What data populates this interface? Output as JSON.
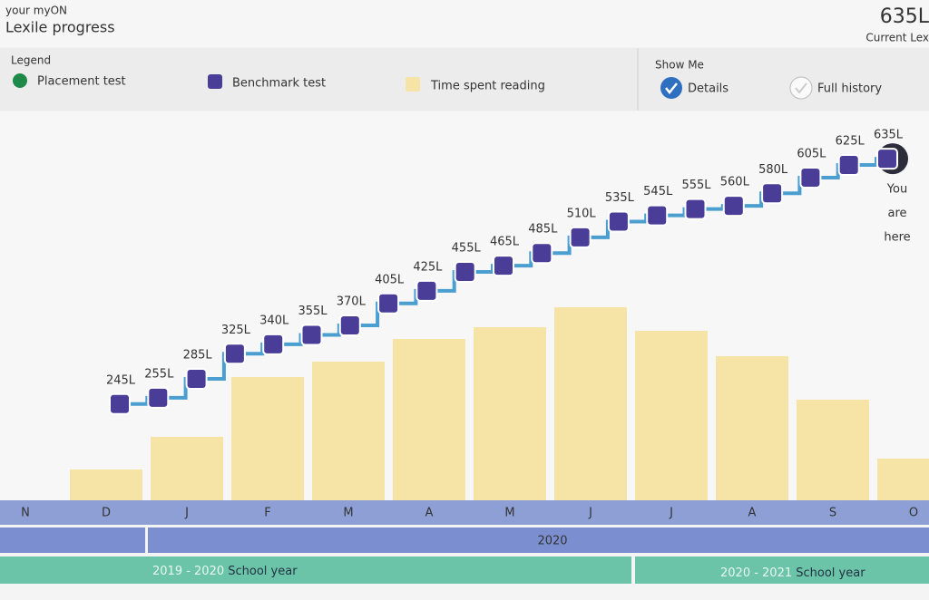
{
  "header": {
    "kicker": "your myON",
    "title": "Lexile progress",
    "current_value": "635L",
    "current_label": "Current Lex"
  },
  "legend": {
    "title": "Legend",
    "items": [
      "Placement test",
      "Benchmark test",
      "Time spent reading"
    ]
  },
  "show_me": {
    "title": "Show Me",
    "options": [
      "Details",
      "Full history"
    ]
  },
  "chart_data": {
    "type": "bar",
    "categories": [
      "N",
      "D",
      "J",
      "F",
      "M",
      "A",
      "M",
      "J",
      "J",
      "A",
      "S",
      "O"
    ],
    "values": [
      null,
      34,
      70,
      136,
      153,
      178,
      191,
      213,
      187,
      159,
      111,
      46
    ],
    "color": "#f6e3a6",
    "ylim": [
      0,
      422
    ],
    "lexile": {
      "name": "Benchmark test",
      "color": "#4a3d98",
      "line_color": "#4a9fd0",
      "values": [
        245,
        255,
        285,
        325,
        340,
        355,
        370,
        405,
        425,
        455,
        465,
        485,
        510,
        535,
        545,
        555,
        560,
        580,
        605,
        625,
        635
      ],
      "value_labels": [
        "245L",
        "255L",
        "285L",
        "325L",
        "340L",
        "355L",
        "370L",
        "405L",
        "425L",
        "455L",
        "465L",
        "485L",
        "510L",
        "535L",
        "545L",
        "555L",
        "560L",
        "580L",
        "605L",
        "625L",
        "635L"
      ],
      "ylim": [
        92,
        700
      ]
    },
    "annotation": [
      "You",
      "are",
      "here"
    ],
    "years": [
      "2020"
    ],
    "school_years": [
      {
        "years": "2019 - 2020",
        "label": "School year"
      },
      {
        "years": "2020 - 2021",
        "label": "School year"
      }
    ]
  }
}
